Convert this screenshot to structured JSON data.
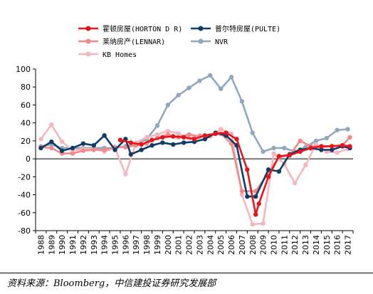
{
  "chart_data": {
    "type": "line",
    "x": [
      "1988",
      "1989",
      "1990",
      "1991",
      "1992",
      "1993",
      "1994",
      "1995",
      "1996",
      "1997",
      "1998",
      "1999",
      "2000",
      "2001",
      "2002",
      "2003",
      "2004",
      "2005",
      "2006",
      "2007",
      "2008",
      "2009",
      "2010",
      "2011",
      "2012",
      "2013",
      "2014",
      "2015",
      "2016",
      "2017"
    ],
    "ylim": [
      -80,
      100
    ],
    "yticks": [
      100,
      80,
      60,
      40,
      20,
      0,
      -20,
      -40,
      -60,
      -80
    ],
    "grid": false,
    "legend_position": "top-center",
    "series": [
      {
        "name": "霍顿房屋(HORTON D R)",
        "color": "#e8141b",
        "marker": "circle",
        "values": [
          null,
          null,
          null,
          null,
          null,
          null,
          null,
          null,
          null,
          null,
          null,
          null,
          null,
          null,
          null,
          null,
          null,
          null,
          null,
          null,
          null,
          null,
          null,
          null,
          null,
          null,
          null,
          null,
          null,
          null
        ],
        "points": [
          [
            7.5,
            21
          ],
          [
            8.5,
            18
          ],
          [
            9.5,
            16
          ],
          [
            10.5,
            21
          ],
          [
            11.5,
            24
          ],
          [
            12.5,
            25
          ],
          [
            13.5,
            24
          ],
          [
            14.5,
            22
          ],
          [
            15.5,
            26
          ],
          [
            16.5,
            28
          ],
          [
            17.5,
            29
          ],
          [
            18.5,
            22
          ],
          [
            19.5,
            -12
          ],
          [
            20.3,
            -62
          ],
          [
            20.6,
            -50
          ],
          [
            21.5,
            -20
          ],
          [
            22.5,
            3
          ],
          [
            23.5,
            4
          ],
          [
            24.5,
            8
          ],
          [
            25.5,
            12
          ],
          [
            26.5,
            14
          ],
          [
            27.5,
            14
          ],
          [
            28.5,
            15
          ],
          [
            29.2,
            14
          ]
        ]
      },
      {
        "name": "普尔特房屋(PULTE)",
        "color": "#0e3c66",
        "marker": "circle",
        "points": [
          [
            0,
            12
          ],
          [
            1,
            19
          ],
          [
            2,
            9
          ],
          [
            3,
            12
          ],
          [
            4,
            17
          ],
          [
            5,
            15
          ],
          [
            6,
            26
          ],
          [
            7,
            10
          ],
          [
            8,
            22
          ],
          [
            8.5,
            5
          ],
          [
            9.5,
            10
          ],
          [
            10.5,
            15
          ],
          [
            11.5,
            18
          ],
          [
            12.5,
            16
          ],
          [
            13.5,
            18
          ],
          [
            14.5,
            19
          ],
          [
            15.5,
            22
          ],
          [
            16.5,
            29
          ],
          [
            17.5,
            26
          ],
          [
            18.5,
            15
          ],
          [
            19.5,
            -42
          ],
          [
            20.3,
            -42
          ],
          [
            21.5,
            -12
          ],
          [
            22.5,
            -14
          ],
          [
            23.5,
            5
          ],
          [
            24.5,
            10
          ],
          [
            25.5,
            12
          ],
          [
            26.5,
            10
          ],
          [
            27.5,
            10
          ],
          [
            28.5,
            14
          ],
          [
            29.2,
            12
          ]
        ]
      },
      {
        "name": "莱纳房产(LENNAR)",
        "color": "#f08a8a",
        "marker": "circle",
        "points": [
          [
            0,
            13
          ],
          [
            1,
            12
          ],
          [
            2,
            6
          ],
          [
            3,
            6
          ],
          [
            4,
            9
          ],
          [
            5,
            10
          ],
          [
            6,
            10
          ],
          [
            7,
            13
          ],
          [
            8,
            13
          ],
          [
            9,
            15
          ],
          [
            10,
            17
          ],
          [
            11,
            23
          ],
          [
            12,
            27
          ],
          [
            13,
            24
          ],
          [
            14,
            27
          ],
          [
            15,
            25
          ],
          [
            16,
            26
          ],
          [
            17,
            28
          ],
          [
            18,
            17
          ],
          [
            19,
            -36
          ],
          [
            20.3,
            -36
          ],
          [
            21.5,
            -16
          ],
          [
            22.5,
            2
          ],
          [
            23.5,
            4
          ],
          [
            24.5,
            20
          ],
          [
            25.5,
            14
          ],
          [
            26.5,
            13
          ],
          [
            27.5,
            14
          ],
          [
            28.5,
            15
          ],
          [
            29.2,
            24
          ]
        ]
      },
      {
        "name": "NVR",
        "color": "#8fa8c0",
        "marker": "circle",
        "points": [
          [
            0,
            14
          ],
          [
            1,
            16
          ],
          [
            2,
            12
          ],
          [
            3,
            12
          ],
          [
            4,
            12
          ],
          [
            5,
            12
          ],
          [
            6,
            12
          ],
          [
            7,
            12
          ],
          [
            8,
            14
          ],
          [
            9,
            16
          ],
          [
            10,
            22
          ],
          [
            11,
            37
          ],
          [
            12,
            60
          ],
          [
            13,
            71
          ],
          [
            14,
            79
          ],
          [
            15,
            87
          ],
          [
            16,
            93
          ],
          [
            17,
            78
          ],
          [
            18,
            91
          ],
          [
            19,
            64
          ],
          [
            20,
            29
          ],
          [
            21,
            8
          ],
          [
            22,
            12
          ],
          [
            23,
            12
          ],
          [
            24,
            8
          ],
          [
            25,
            13
          ],
          [
            26,
            20
          ],
          [
            27,
            23
          ],
          [
            28,
            32
          ],
          [
            29,
            33
          ]
        ]
      },
      {
        "name": "KB Homes",
        "color": "#f7b6bd",
        "marker": "circle",
        "points": [
          [
            0,
            22
          ],
          [
            1,
            38
          ],
          [
            2,
            19
          ],
          [
            3,
            9
          ],
          [
            4,
            11
          ],
          [
            5,
            11
          ],
          [
            6,
            8
          ],
          [
            7,
            12
          ],
          [
            8,
            -17
          ],
          [
            9,
            18
          ],
          [
            10,
            24
          ],
          [
            11,
            27
          ],
          [
            12,
            31
          ],
          [
            13,
            28
          ],
          [
            14,
            23
          ],
          [
            15,
            26
          ],
          [
            16,
            25
          ],
          [
            17,
            33
          ],
          [
            18,
            28
          ],
          [
            19,
            -40
          ],
          [
            20,
            -73
          ],
          [
            21,
            -72
          ],
          [
            22,
            6
          ],
          [
            23,
            -6
          ],
          [
            24,
            -27
          ],
          [
            25,
            -7
          ],
          [
            26,
            16
          ],
          [
            27,
            8
          ],
          [
            28,
            7
          ],
          [
            29,
            11
          ]
        ]
      }
    ]
  },
  "source": "资料来源：Bloomberg，中信建投证券研究发展部"
}
